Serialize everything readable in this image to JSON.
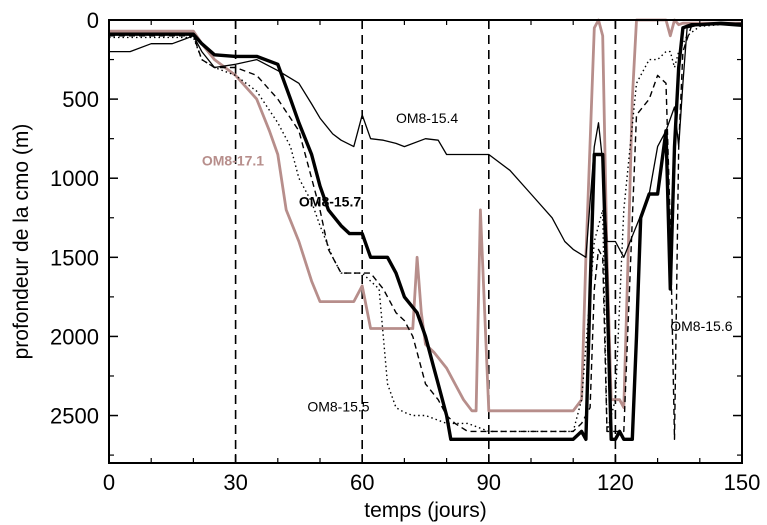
{
  "chart_data": {
    "type": "line",
    "title": "",
    "xlabel": "temps (jours)",
    "ylabel": "profondeur de la cmo (m)",
    "xlim": [
      0,
      150
    ],
    "ylim": [
      0,
      2800
    ],
    "y_inverted": true,
    "x_ticks": [
      0,
      30,
      60,
      90,
      120,
      150
    ],
    "y_ticks": [
      0,
      500,
      1000,
      1500,
      2000,
      2500
    ],
    "x_tick_labels": [
      "0",
      "30",
      "60",
      "90",
      "120",
      "150"
    ],
    "y_tick_labels": [
      "0",
      "500",
      "1000",
      "1500",
      "2000",
      "2500"
    ],
    "reference_lines_x": [
      30,
      60,
      90,
      120
    ],
    "grid": false,
    "legend": "none (series labeled inline)",
    "series": [
      {
        "name": "OM8-17.1",
        "style": "solid",
        "color": "#b78e8b",
        "label_at": [
          22,
          920
        ],
        "x": [
          0,
          20,
          22,
          25,
          30,
          35,
          38,
          40,
          42,
          45,
          48,
          50,
          52,
          55,
          58,
          60,
          62,
          65,
          67,
          70,
          72,
          73,
          74,
          75,
          77,
          80,
          82,
          84,
          86,
          87,
          88,
          90,
          95,
          100,
          105,
          110,
          112,
          113,
          115,
          116,
          117,
          118,
          119,
          120,
          121,
          122,
          123,
          124,
          125,
          126,
          127,
          128,
          130,
          132,
          133,
          134,
          135,
          136,
          140,
          145,
          150
        ],
        "y": [
          70,
          70,
          150,
          250,
          350,
          500,
          700,
          850,
          1200,
          1400,
          1650,
          1780,
          1780,
          1780,
          1780,
          1680,
          1950,
          1950,
          1950,
          1950,
          1950,
          1500,
          1850,
          2050,
          2100,
          2200,
          2300,
          2400,
          2470,
          2470,
          1200,
          2470,
          2470,
          2470,
          2470,
          2470,
          2400,
          1500,
          50,
          0,
          100,
          1500,
          2400,
          2400,
          2400,
          2450,
          1500,
          500,
          0,
          0,
          0,
          0,
          0,
          0,
          100,
          0,
          30,
          20,
          20,
          20,
          20
        ]
      },
      {
        "name": "OM8-15.7",
        "style": "thick",
        "color": "#000000",
        "label_at": [
          45,
          1180
        ],
        "x": [
          0,
          20,
          22,
          25,
          30,
          35,
          40,
          43,
          45,
          48,
          50,
          52,
          55,
          57,
          60,
          62,
          64,
          66,
          68,
          70,
          73,
          75,
          77,
          78,
          80,
          81,
          83,
          85,
          88,
          90,
          92,
          95,
          100,
          105,
          110,
          112,
          113,
          114,
          115,
          116,
          117,
          118,
          119,
          120,
          121,
          122,
          123,
          124,
          125,
          126,
          128,
          130,
          132,
          133,
          134,
          135,
          136,
          138,
          140,
          145,
          150
        ],
        "y": [
          90,
          90,
          150,
          220,
          230,
          230,
          280,
          500,
          650,
          850,
          1050,
          1200,
          1300,
          1350,
          1350,
          1500,
          1500,
          1500,
          1600,
          1750,
          1850,
          2000,
          2200,
          2300,
          2500,
          2650,
          2650,
          2650,
          2650,
          2650,
          2650,
          2650,
          2650,
          2650,
          2650,
          2600,
          2650,
          1700,
          850,
          850,
          850,
          1700,
          2650,
          2650,
          2600,
          2650,
          2650,
          2650,
          2000,
          1250,
          1100,
          1100,
          700,
          1700,
          800,
          300,
          50,
          30,
          30,
          20,
          30
        ]
      },
      {
        "name": "OM8-15.4",
        "style": "thin",
        "color": "#000000",
        "label_at": [
          68,
          650
        ],
        "x": [
          0,
          5,
          10,
          15,
          18,
          20,
          22,
          25,
          30,
          35,
          40,
          45,
          48,
          50,
          53,
          55,
          58,
          60,
          62,
          65,
          68,
          70,
          75,
          78,
          80,
          85,
          90,
          95,
          100,
          105,
          108,
          110,
          113,
          115,
          116,
          117,
          118,
          120,
          122,
          125,
          128,
          130,
          132,
          134,
          135,
          136,
          137,
          140,
          145,
          150
        ],
        "y": [
          200,
          200,
          150,
          150,
          120,
          100,
          200,
          300,
          280,
          250,
          320,
          400,
          530,
          620,
          720,
          760,
          800,
          600,
          750,
          760,
          780,
          800,
          750,
          760,
          850,
          850,
          850,
          950,
          1100,
          1250,
          1400,
          1450,
          1500,
          800,
          650,
          900,
          1400,
          1400,
          1500,
          1300,
          1100,
          800,
          700,
          550,
          800,
          400,
          50,
          30,
          30,
          40
        ]
      },
      {
        "name": "OM8-15.5",
        "style": "dotted",
        "color": "#000000",
        "label_at": [
          47,
          2475
        ],
        "x": [
          0,
          20,
          22,
          25,
          30,
          35,
          40,
          43,
          45,
          48,
          50,
          53,
          55,
          57,
          60,
          62,
          64,
          66,
          68,
          70,
          72,
          75,
          80,
          85,
          90,
          95,
          100,
          105,
          110,
          112,
          115,
          117,
          118,
          119,
          120,
          122,
          125,
          128,
          130,
          132,
          133,
          134,
          135,
          137,
          140,
          145,
          150
        ],
        "y": [
          110,
          110,
          250,
          300,
          350,
          450,
          650,
          800,
          1000,
          1150,
          1300,
          1500,
          1600,
          1600,
          1600,
          1650,
          1700,
          2300,
          2450,
          2480,
          2500,
          2500,
          2550,
          2550,
          2600,
          2600,
          2600,
          2600,
          2600,
          2400,
          1400,
          1200,
          2600,
          2500,
          2400,
          1200,
          400,
          250,
          250,
          200,
          200,
          300,
          200,
          100,
          40,
          30,
          30
        ]
      },
      {
        "name": "OM8-15.6",
        "style": "dashed",
        "color": "#000000",
        "label_at": [
          133,
          1965
        ],
        "x": [
          0,
          20,
          22,
          25,
          30,
          35,
          40,
          45,
          48,
          50,
          52,
          55,
          58,
          60,
          62,
          65,
          68,
          70,
          72,
          73,
          75,
          78,
          80,
          82,
          85,
          88,
          90,
          95,
          100,
          105,
          110,
          112,
          114,
          115,
          116,
          117,
          118,
          119,
          120,
          122,
          125,
          128,
          130,
          132,
          133,
          134,
          135,
          136,
          138,
          140,
          145,
          150
        ],
        "y": [
          100,
          100,
          250,
          300,
          300,
          350,
          500,
          700,
          1000,
          1200,
          1450,
          1600,
          1600,
          1600,
          1600,
          1700,
          1850,
          1900,
          2000,
          2100,
          2300,
          2400,
          2500,
          2550,
          2600,
          2600,
          2600,
          2600,
          2600,
          2600,
          2600,
          2550,
          2450,
          1700,
          1450,
          1500,
          2600,
          2600,
          2600,
          2600,
          600,
          500,
          350,
          400,
          1300,
          2650,
          800,
          200,
          40,
          30,
          20,
          20
        ]
      }
    ]
  }
}
